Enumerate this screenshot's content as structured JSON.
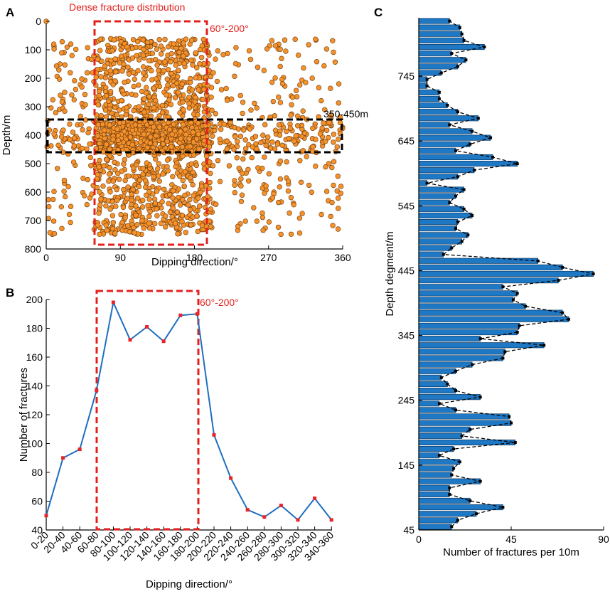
{
  "colors": {
    "scatter_fill": "#f4912b",
    "scatter_stroke": "#6b3a0c",
    "line": "#1f6fbf",
    "marker": "#e8232a",
    "bar": "#1f78c4",
    "highlight_red": "#e3201c",
    "highlight_black": "#000000"
  },
  "chart_data": [
    {
      "id": "A",
      "type": "scatter",
      "panel_label": "A",
      "xlabel": "Dipping direction/°",
      "ylabel": "Depth/m",
      "xlim": [
        0,
        360
      ],
      "ylim": [
        0,
        800
      ],
      "y_inverted": true,
      "xticks": [
        "0",
        "90",
        "180",
        "270",
        "360"
      ],
      "yticks": [
        "0",
        "100",
        "200",
        "300",
        "400",
        "500",
        "600",
        "700",
        "800"
      ],
      "point_count_estimate": 2000,
      "depth_range": [
        60,
        750
      ],
      "highlight_box_red": {
        "x_range": [
          60,
          200
        ],
        "label": "60°-200°",
        "title": "Dense fracture distribution"
      },
      "highlight_box_black": {
        "depth_range": [
          350,
          460
        ],
        "label": "350-450m"
      }
    },
    {
      "id": "B",
      "type": "line",
      "panel_label": "B",
      "xlabel": "Dipping direction/°",
      "ylabel": "Number of fractures",
      "ylim": [
        40,
        200
      ],
      "yticks": [
        "40",
        "60",
        "80",
        "100",
        "120",
        "140",
        "160",
        "180",
        "200"
      ],
      "categories": [
        "0-20",
        "20-40",
        "40-60",
        "60-80",
        "80-100",
        "100-120",
        "120-140",
        "140-160",
        "160-180",
        "180-200",
        "200-220",
        "220-240",
        "240-260",
        "260-280",
        "280-300",
        "300-320",
        "320-340",
        "340-360"
      ],
      "values": [
        50,
        90,
        96,
        137,
        198,
        172,
        181,
        171,
        189,
        190,
        106,
        76,
        54,
        49,
        57,
        47,
        62,
        47
      ],
      "highlight_box_red": {
        "label": "60°-200°",
        "y_range": [
          41,
          206
        ]
      }
    },
    {
      "id": "C",
      "type": "bar",
      "orientation": "horizontal",
      "panel_label": "C",
      "xlabel": "Number of fractures per 10m",
      "ylabel": "Depth degment/m",
      "xlim": [
        0,
        90
      ],
      "xticks": [
        "0",
        "45",
        "90"
      ],
      "yticks": [
        "45",
        "145",
        "245",
        "345",
        "445",
        "545",
        "645",
        "745"
      ],
      "depth_start": 45,
      "depth_step": 10,
      "counts": [
        16,
        19,
        28,
        41,
        25,
        15,
        15,
        30,
        16,
        17,
        20,
        10,
        17,
        47,
        21,
        25,
        45,
        44,
        18,
        10,
        30,
        18,
        14,
        11,
        18,
        26,
        41,
        42,
        61,
        30,
        48,
        49,
        73,
        70,
        52,
        46,
        48,
        41,
        68,
        85,
        70,
        58,
        12,
        16,
        21,
        24,
        18,
        19,
        26,
        22,
        15,
        18,
        22,
        4,
        19,
        27,
        48,
        36,
        18,
        25,
        35,
        26,
        15,
        29,
        19,
        14,
        10,
        10,
        4,
        4,
        11,
        19,
        23,
        16,
        32,
        22,
        21,
        20,
        15
      ]
    }
  ]
}
